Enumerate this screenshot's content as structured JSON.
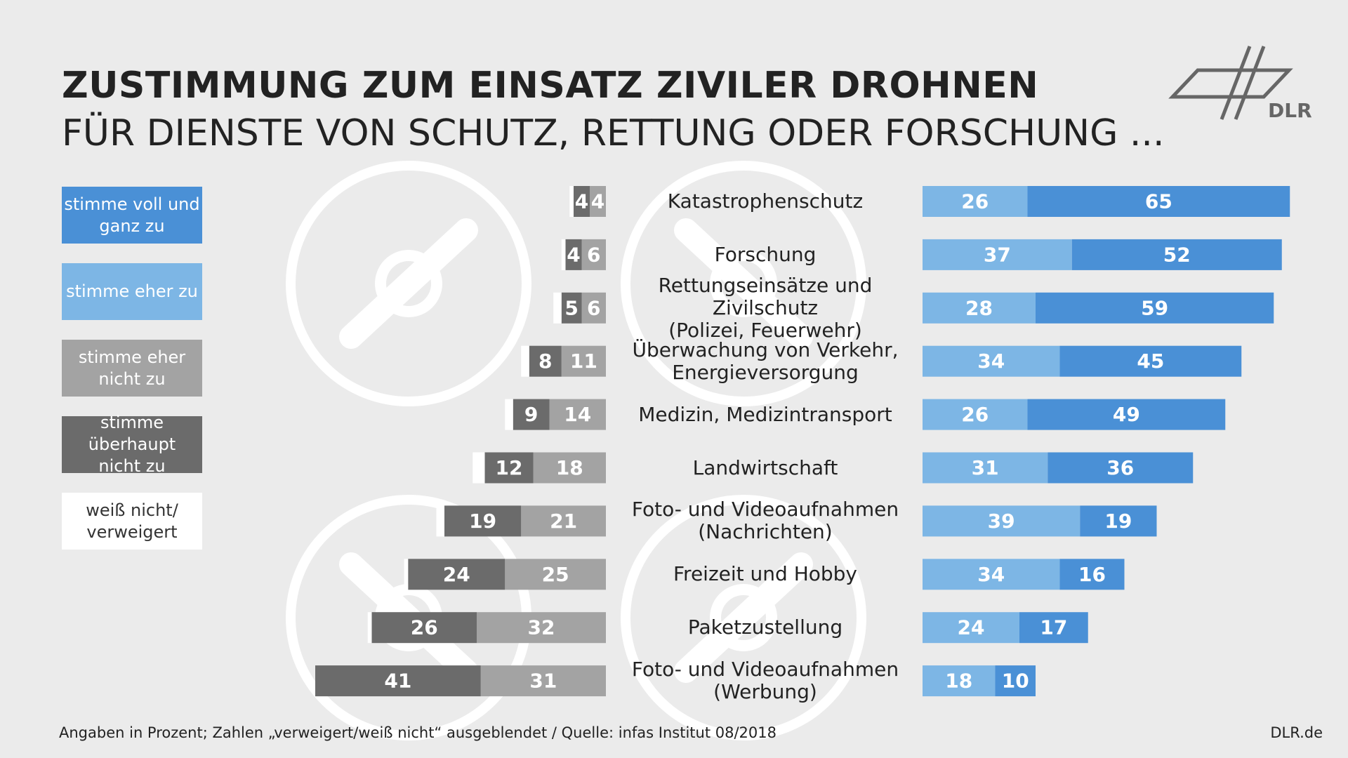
{
  "chart_data": {
    "type": "diverging_bar",
    "title": "ZUSTIMMUNG ZUM EINSATZ ZIVILER DROHNEN",
    "subtitle": "FÜR DIENSTE VON SCHUTZ, RETTUNG ODER FORSCHUNG ...",
    "logo": "DLR",
    "note": "Angaben in Prozent; Zahlen „verweigert/weiß nicht“ ausgeblendet / Quelle: infas Institut 08/2018",
    "website": "DLR.de",
    "categories": [
      "Katastrophenschutz",
      "Forschung",
      "Rettungseinsätze und Zivilschutz\n(Polizei, Feuerwehr)",
      "Überwachung von Verkehr,\nEnergieversorgung",
      "Medizin, Medizintransport",
      "Landwirtschaft",
      "Foto- und Videoaufnahmen\n(Nachrichten)",
      "Freizeit und Hobby",
      "Paketzustellung",
      "Foto- und Videoaufnahmen\n(Werbung)"
    ],
    "series": [
      {
        "name": "stimme voll und\nganz zu",
        "color": "#4a90d6",
        "values": [
          65,
          52,
          59,
          45,
          49,
          36,
          19,
          16,
          17,
          10
        ]
      },
      {
        "name": "stimme eher zu",
        "color": "#7db6e5",
        "values": [
          26,
          37,
          28,
          34,
          26,
          31,
          39,
          34,
          24,
          18
        ]
      },
      {
        "name": "stimme eher\nnicht zu",
        "color": "#a3a3a3",
        "values": [
          4,
          6,
          6,
          11,
          14,
          18,
          21,
          25,
          32,
          31
        ]
      },
      {
        "name": "stimme überhaupt\nnicht zu",
        "color": "#6b6b6b",
        "values": [
          4,
          4,
          5,
          8,
          9,
          12,
          19,
          24,
          26,
          41
        ]
      },
      {
        "name": "weiß nicht/\nverweigert",
        "color": "#ffffff",
        "values": [
          1,
          1,
          2,
          2,
          2,
          3,
          2,
          1,
          1,
          0
        ]
      }
    ]
  }
}
